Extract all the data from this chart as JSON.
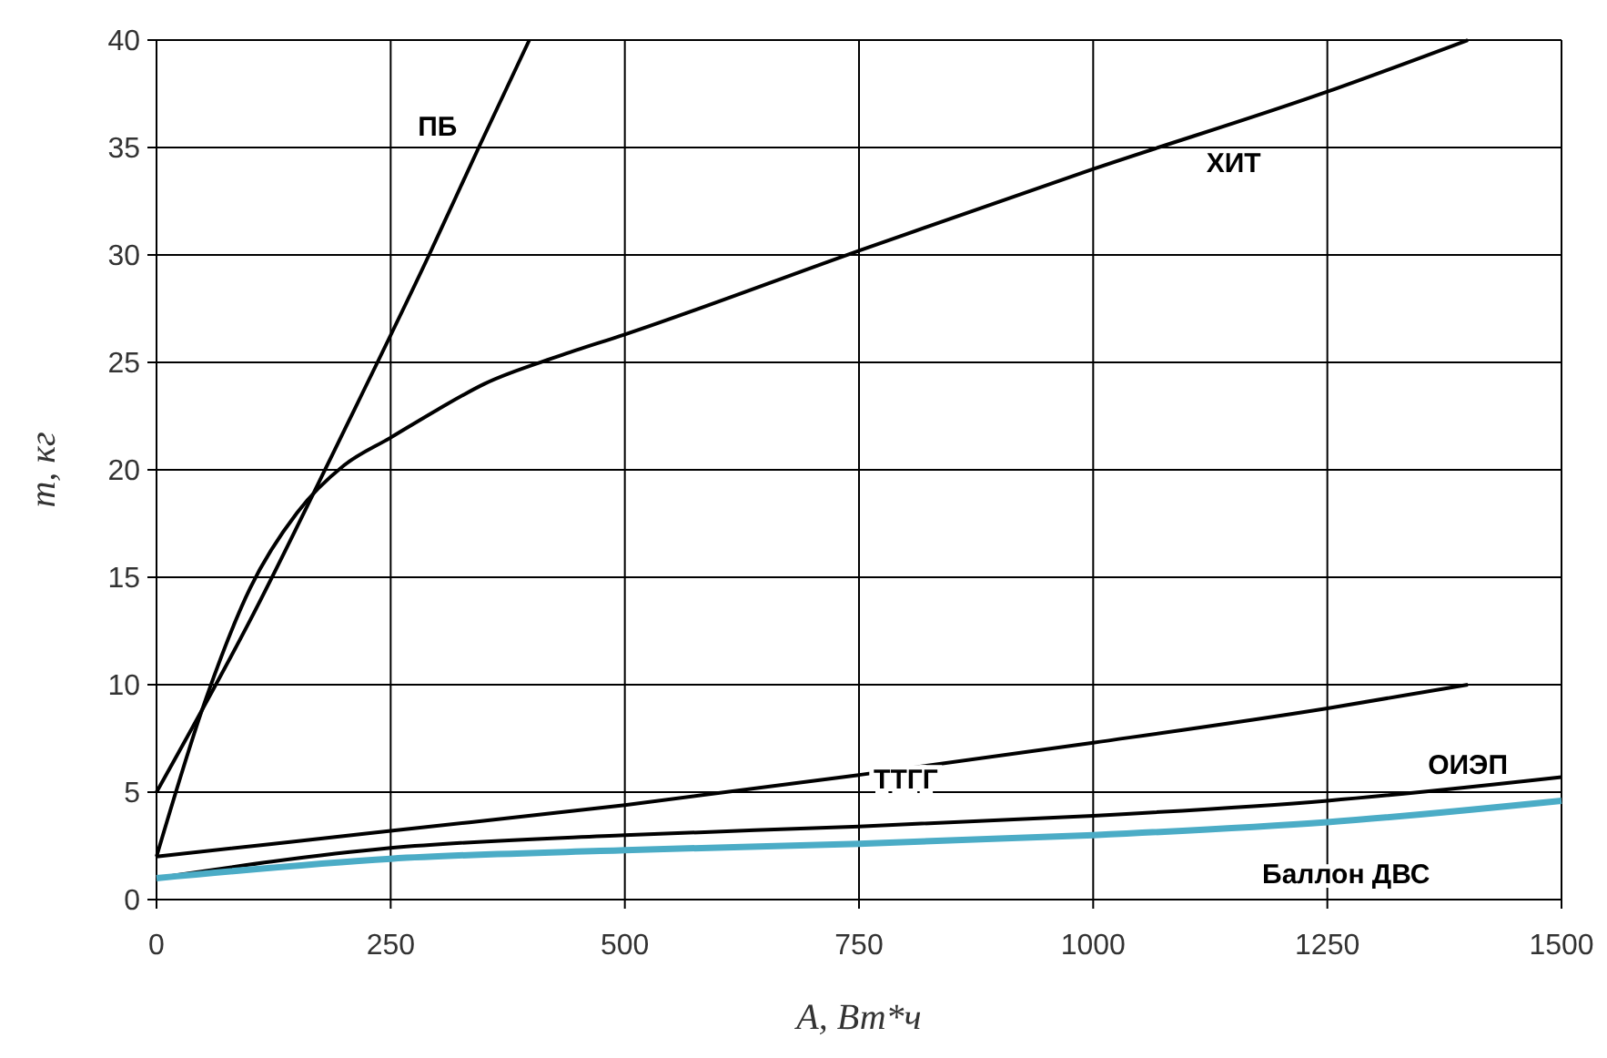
{
  "chart_data": {
    "type": "line",
    "xlabel": "A, Вт*ч",
    "ylabel": "m, кг",
    "xlim": [
      0,
      1500
    ],
    "ylim": [
      0,
      40
    ],
    "xticks": [
      0,
      250,
      500,
      750,
      1000,
      1250,
      1500
    ],
    "yticks": [
      0,
      5,
      10,
      15,
      20,
      25,
      30,
      35,
      40
    ],
    "grid": true,
    "marker": "none",
    "line_style": "solid",
    "series": [
      {
        "name": "ПБ",
        "color": "#000000",
        "x": [
          0,
          100,
          200,
          291,
          344,
          398
        ],
        "values": [
          5,
          13,
          21.8,
          30,
          35,
          40
        ]
      },
      {
        "name": "ХИТ",
        "color": "#000000",
        "x": [
          0,
          50,
          100,
          150,
          200,
          250,
          300,
          350,
          430,
          500,
          750,
          1000,
          1250,
          1400
        ],
        "values": [
          2,
          9,
          14.5,
          18,
          20.2,
          21.5,
          22.8,
          24,
          25.3,
          26.3,
          30.2,
          34,
          37.6,
          40
        ]
      },
      {
        "name": "ТТГГ",
        "color": "#000000",
        "x": [
          0,
          250,
          500,
          750,
          1000,
          1250,
          1400
        ],
        "values": [
          2,
          3.2,
          4.4,
          5.8,
          7.3,
          8.9,
          10
        ]
      },
      {
        "name": "ОИЭП",
        "color": "#000000",
        "x": [
          0,
          250,
          500,
          750,
          1000,
          1250,
          1500
        ],
        "values": [
          1,
          2.4,
          3,
          3.4,
          3.9,
          4.6,
          5.7
        ]
      },
      {
        "name": "Баллон ДВС",
        "color": "#4bacc6",
        "x": [
          0,
          250,
          500,
          750,
          1000,
          1250,
          1500
        ],
        "values": [
          1,
          1.9,
          2.3,
          2.6,
          3,
          3.6,
          4.6
        ]
      }
    ]
  }
}
